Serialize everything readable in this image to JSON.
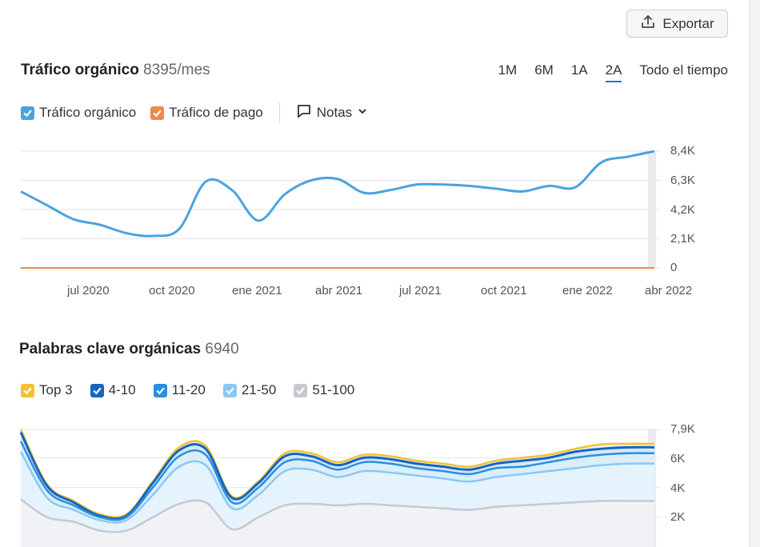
{
  "export": {
    "label": "Exportar",
    "icon": "upload-icon"
  },
  "traffic": {
    "title": "Tráfico orgánico",
    "value": "8395/mes",
    "periods": [
      "1M",
      "6M",
      "1A",
      "2A",
      "Todo el tiempo"
    ],
    "active_period": "2A",
    "legend": {
      "organic": "Tráfico orgánico",
      "paid": "Tráfico de pago",
      "notes": "Notas"
    },
    "colors": {
      "organic": "#4aa3df",
      "paid": "#f0894a"
    },
    "y_ticks": [
      "8,4K",
      "6,3K",
      "4,2K",
      "2,1K",
      "0"
    ],
    "x_ticks": [
      "jul 2020",
      "oct 2020",
      "ene 2021",
      "abr 2021",
      "jul 2021",
      "oct 2021",
      "ene 2022",
      "abr 2022"
    ]
  },
  "keywords": {
    "title": "Palabras clave orgánicas",
    "value": "6940",
    "legend": [
      "Top 3",
      "4-10",
      "11-20",
      "21-50",
      "51-100"
    ],
    "legend_colors": [
      "#f2c230",
      "#1565c0",
      "#2a8fe0",
      "#8cc8f2",
      "#c6c9cf"
    ],
    "y_ticks": [
      "7,9K",
      "6K",
      "4K",
      "2K"
    ]
  },
  "chart_data": [
    {
      "type": "line",
      "title": "Tráfico orgánico",
      "x": [
        "2020-04",
        "2020-05",
        "2020-06",
        "2020-07",
        "2020-08",
        "2020-09",
        "2020-10",
        "2020-11",
        "2020-12",
        "2021-01",
        "2021-02",
        "2021-03",
        "2021-04",
        "2021-05",
        "2021-06",
        "2021-07",
        "2021-08",
        "2021-09",
        "2021-10",
        "2021-11",
        "2021-12",
        "2022-01",
        "2022-02",
        "2022-03",
        "2022-04"
      ],
      "series": [
        {
          "name": "Tráfico orgánico",
          "values": [
            5500,
            4500,
            3500,
            3100,
            2500,
            2300,
            2800,
            6200,
            5600,
            3400,
            5300,
            6300,
            6400,
            5400,
            5600,
            6000,
            6000,
            5900,
            5700,
            5500,
            5900,
            5800,
            7600,
            8000,
            8395
          ]
        },
        {
          "name": "Tráfico de pago",
          "values": [
            0,
            0,
            0,
            0,
            0,
            0,
            0,
            0,
            0,
            0,
            0,
            0,
            0,
            0,
            0,
            0,
            0,
            0,
            0,
            0,
            0,
            0,
            0,
            0,
            0
          ]
        }
      ],
      "ylim": [
        0,
        8400
      ],
      "grid": true
    },
    {
      "type": "area",
      "title": "Palabras clave orgánicas",
      "x": [
        "2020-04",
        "2020-05",
        "2020-06",
        "2020-07",
        "2020-08",
        "2020-09",
        "2020-10",
        "2020-11",
        "2020-12",
        "2021-01",
        "2021-02",
        "2021-03",
        "2021-04",
        "2021-05",
        "2021-06",
        "2021-07",
        "2021-08",
        "2021-09",
        "2021-10",
        "2021-11",
        "2021-12",
        "2022-01",
        "2022-02",
        "2022-03",
        "2022-04"
      ],
      "series": [
        {
          "name": "Top 3",
          "values": [
            7900,
            4200,
            3100,
            2200,
            2200,
            4400,
            6700,
            6800,
            3400,
            4400,
            6300,
            6300,
            5700,
            6200,
            6100,
            5800,
            5600,
            5400,
            5800,
            6000,
            6200,
            6600,
            6900,
            6940,
            6940
          ]
        },
        {
          "name": "4-10",
          "values": [
            7700,
            4100,
            3000,
            2100,
            2100,
            4300,
            6500,
            6600,
            3300,
            4300,
            6100,
            6100,
            5500,
            6000,
            5900,
            5600,
            5400,
            5200,
            5600,
            5800,
            6000,
            6400,
            6600,
            6700,
            6700
          ]
        },
        {
          "name": "11-20",
          "values": [
            7100,
            3800,
            2800,
            2000,
            2000,
            4000,
            6100,
            6200,
            3000,
            4000,
            5700,
            5800,
            5200,
            5700,
            5600,
            5300,
            5100,
            4900,
            5300,
            5400,
            5700,
            6000,
            6200,
            6300,
            6300
          ]
        },
        {
          "name": "21-50",
          "values": [
            6400,
            3300,
            2500,
            1800,
            1800,
            3500,
            5400,
            5500,
            2600,
            3500,
            5100,
            5200,
            4700,
            5100,
            5000,
            4800,
            4600,
            4400,
            4700,
            4900,
            5100,
            5300,
            5500,
            5600,
            5600
          ]
        },
        {
          "name": "51-100",
          "values": [
            3200,
            2000,
            1700,
            1100,
            1100,
            2000,
            2900,
            3000,
            1200,
            2000,
            2800,
            2900,
            2800,
            2900,
            2800,
            2700,
            2600,
            2500,
            2700,
            2800,
            2900,
            3000,
            3100,
            3100,
            3100
          ]
        }
      ],
      "ylim": [
        0,
        7900
      ],
      "grid": true
    }
  ]
}
